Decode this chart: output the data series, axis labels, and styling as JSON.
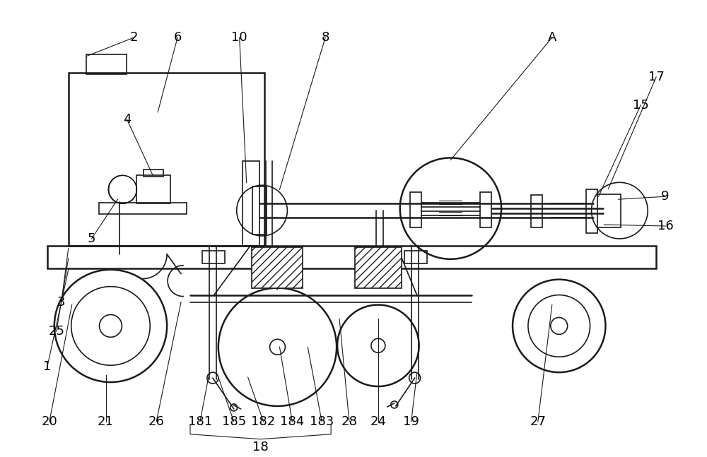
{
  "bg_color": "#ffffff",
  "line_color": "#1a1a1a",
  "fig_width": 10.0,
  "fig_height": 6.47,
  "dpi": 100
}
